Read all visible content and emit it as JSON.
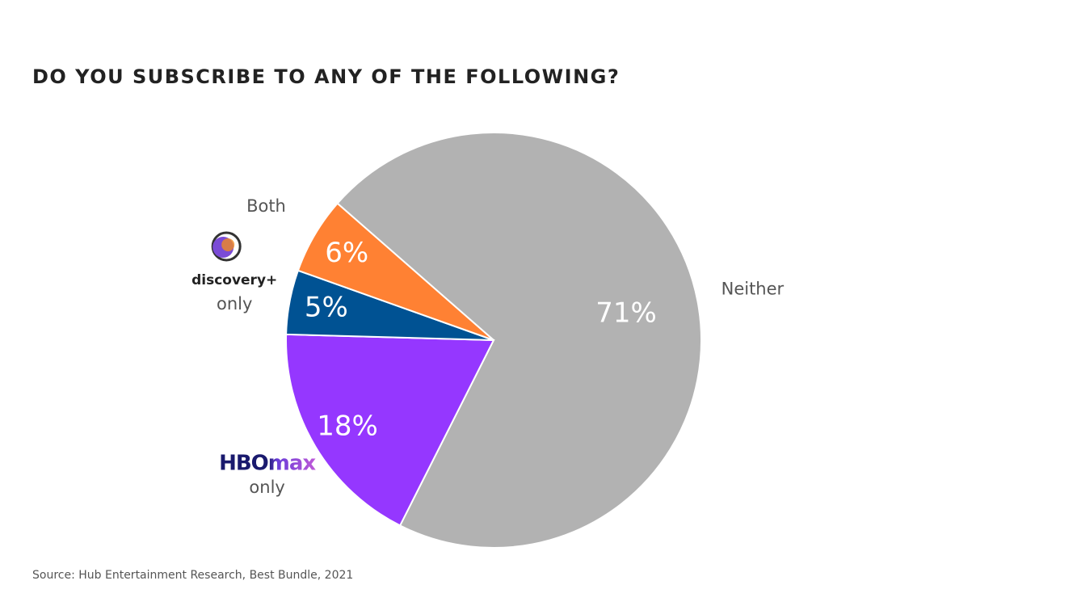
{
  "chart_data": {
    "type": "pie",
    "title": "DO YOU SUBSCRIBE TO ANY OF THE FOLLOWING?",
    "categories": [
      "Neither",
      "only",
      "only",
      "Both"
    ],
    "brand_logos": [
      null,
      "HBOmax",
      "discovery+",
      null
    ],
    "values": [
      71,
      18,
      5,
      6
    ],
    "value_labels": [
      "71%",
      "18%",
      "5%",
      "6%"
    ],
    "colors": [
      "#b2b2b2",
      "#9537ff",
      "#005293",
      "#ff8133"
    ],
    "source": "Source: Hub Entertainment Research, Best Bundle, 2021"
  }
}
